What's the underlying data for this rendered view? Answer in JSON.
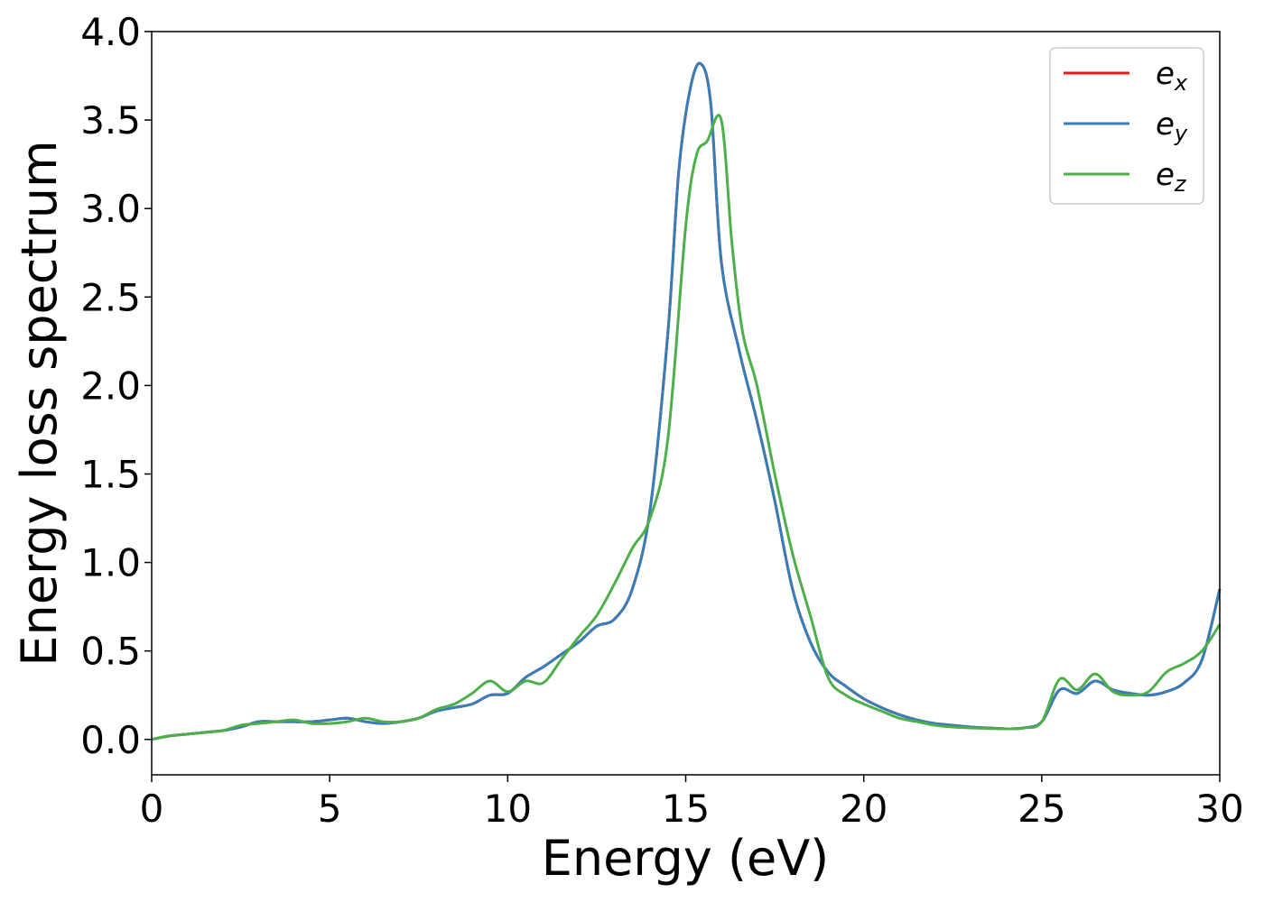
{
  "chart_data": {
    "type": "line",
    "xlabel": "Energy (eV)",
    "ylabel": "Energy loss spectrum",
    "xlim": [
      0,
      30
    ],
    "ylim": [
      -0.2,
      4.0
    ],
    "xticks": [
      0,
      5,
      10,
      15,
      20,
      25,
      30
    ],
    "yticks": [
      0.0,
      0.5,
      1.0,
      1.5,
      2.0,
      2.5,
      3.0,
      3.5,
      4.0
    ],
    "xtick_labels": [
      "0",
      "5",
      "10",
      "15",
      "20",
      "25",
      "30"
    ],
    "ytick_labels": [
      "0.0",
      "0.5",
      "1.0",
      "1.5",
      "2.0",
      "2.5",
      "3.0",
      "3.5",
      "4.0"
    ],
    "grid": false,
    "legend_position": "top-right",
    "series": [
      {
        "name": "e_x",
        "label_base": "e",
        "label_sub": "x",
        "color": "#e41a1c",
        "x": [
          0,
          0.5,
          1,
          1.5,
          2,
          2.5,
          3,
          3.5,
          4,
          4.5,
          5,
          5.5,
          6,
          6.5,
          7,
          7.5,
          8,
          8.5,
          9,
          9.5,
          10,
          10.5,
          11,
          11.5,
          12,
          12.5,
          13,
          13.5,
          14,
          14.5,
          14.8,
          15.1,
          15.4,
          15.7,
          16,
          16.5,
          17,
          17.5,
          18,
          18.5,
          19,
          19.5,
          20,
          20.5,
          21,
          21.5,
          22,
          22.5,
          23,
          23.5,
          24,
          24.5,
          25,
          25.5,
          26,
          26.5,
          27,
          27.5,
          28,
          28.5,
          29,
          29.5,
          30
        ],
        "y": [
          0.0,
          0.02,
          0.03,
          0.04,
          0.05,
          0.07,
          0.1,
          0.1,
          0.1,
          0.1,
          0.11,
          0.12,
          0.1,
          0.09,
          0.1,
          0.12,
          0.16,
          0.18,
          0.2,
          0.25,
          0.26,
          0.35,
          0.41,
          0.48,
          0.55,
          0.64,
          0.68,
          0.85,
          1.3,
          2.3,
          3.2,
          3.65,
          3.82,
          3.6,
          2.7,
          2.2,
          1.8,
          1.35,
          0.85,
          0.55,
          0.38,
          0.3,
          0.23,
          0.18,
          0.14,
          0.11,
          0.09,
          0.08,
          0.07,
          0.065,
          0.06,
          0.065,
          0.1,
          0.28,
          0.26,
          0.33,
          0.28,
          0.26,
          0.25,
          0.27,
          0.32,
          0.45,
          0.85
        ]
      },
      {
        "name": "e_y",
        "label_base": "e",
        "label_sub": "y",
        "color": "#377eb8",
        "x": [
          0,
          0.5,
          1,
          1.5,
          2,
          2.5,
          3,
          3.5,
          4,
          4.5,
          5,
          5.5,
          6,
          6.5,
          7,
          7.5,
          8,
          8.5,
          9,
          9.5,
          10,
          10.5,
          11,
          11.5,
          12,
          12.5,
          13,
          13.5,
          14,
          14.5,
          14.8,
          15.1,
          15.4,
          15.7,
          16,
          16.5,
          17,
          17.5,
          18,
          18.5,
          19,
          19.5,
          20,
          20.5,
          21,
          21.5,
          22,
          22.5,
          23,
          23.5,
          24,
          24.5,
          25,
          25.5,
          26,
          26.5,
          27,
          27.5,
          28,
          28.5,
          29,
          29.5,
          30
        ],
        "y": [
          0.0,
          0.02,
          0.03,
          0.04,
          0.05,
          0.07,
          0.1,
          0.1,
          0.1,
          0.1,
          0.11,
          0.12,
          0.1,
          0.09,
          0.1,
          0.12,
          0.16,
          0.18,
          0.2,
          0.25,
          0.26,
          0.35,
          0.41,
          0.48,
          0.55,
          0.64,
          0.68,
          0.85,
          1.3,
          2.3,
          3.2,
          3.65,
          3.82,
          3.6,
          2.7,
          2.2,
          1.8,
          1.35,
          0.85,
          0.55,
          0.38,
          0.3,
          0.23,
          0.18,
          0.14,
          0.11,
          0.09,
          0.08,
          0.07,
          0.065,
          0.06,
          0.065,
          0.1,
          0.28,
          0.26,
          0.33,
          0.28,
          0.26,
          0.25,
          0.27,
          0.32,
          0.45,
          0.85
        ]
      },
      {
        "name": "e_z",
        "label_base": "e",
        "label_sub": "z",
        "color": "#4daf4a",
        "x": [
          0,
          0.5,
          1,
          1.5,
          2,
          2.5,
          3,
          3.5,
          4,
          4.5,
          5,
          5.5,
          6,
          6.5,
          7,
          7.5,
          8,
          8.5,
          9,
          9.5,
          10,
          10.5,
          11,
          11.5,
          12,
          12.5,
          13,
          13.5,
          14,
          14.5,
          15,
          15.3,
          15.6,
          16,
          16.3,
          16.6,
          17,
          17.5,
          18,
          18.5,
          19,
          19.5,
          20,
          20.5,
          21,
          21.5,
          22,
          22.5,
          23,
          23.5,
          24,
          24.5,
          25,
          25.5,
          26,
          26.5,
          27,
          27.5,
          28,
          28.5,
          29,
          29.5,
          30
        ],
        "y": [
          0.0,
          0.02,
          0.03,
          0.04,
          0.05,
          0.08,
          0.09,
          0.1,
          0.11,
          0.09,
          0.09,
          0.1,
          0.12,
          0.1,
          0.1,
          0.12,
          0.17,
          0.2,
          0.26,
          0.33,
          0.27,
          0.33,
          0.32,
          0.45,
          0.58,
          0.7,
          0.88,
          1.08,
          1.25,
          1.7,
          2.9,
          3.3,
          3.38,
          3.5,
          2.8,
          2.3,
          2.0,
          1.5,
          1.05,
          0.7,
          0.35,
          0.25,
          0.2,
          0.16,
          0.12,
          0.1,
          0.08,
          0.07,
          0.065,
          0.062,
          0.06,
          0.065,
          0.1,
          0.34,
          0.28,
          0.37,
          0.27,
          0.25,
          0.27,
          0.38,
          0.43,
          0.5,
          0.65
        ]
      }
    ]
  }
}
